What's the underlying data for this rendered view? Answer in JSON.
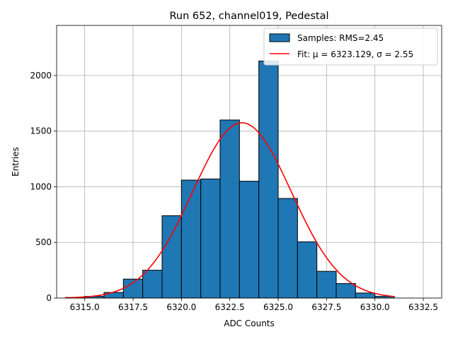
{
  "chart_data": {
    "type": "bar",
    "title": "Run 652, channel019, Pedestal",
    "xlabel": "ADC Counts",
    "ylabel": "Entries",
    "xlim": [
      6313.55,
      6333.45
    ],
    "ylim": [
      0,
      2450
    ],
    "xticks": [
      6315.0,
      6317.5,
      6320.0,
      6322.5,
      6325.0,
      6327.5,
      6330.0,
      6332.5
    ],
    "xtick_labels": [
      "6315.0",
      "6317.5",
      "6320.0",
      "6322.5",
      "6325.0",
      "6327.5",
      "6330.0",
      "6332.5"
    ],
    "yticks": [
      0,
      500,
      1000,
      1500,
      2000
    ],
    "ytick_labels": [
      "0",
      "500",
      "1000",
      "1500",
      "2000"
    ],
    "grid": true,
    "legend_position": "top-right",
    "histogram": {
      "name": "Samples: RMS=2.45",
      "color": "#1f77b4",
      "edge_color": "#000000",
      "bin_edges": [
        6314,
        6315,
        6316,
        6317,
        6318,
        6319,
        6320,
        6321,
        6322,
        6323,
        6324,
        6325,
        6326,
        6327,
        6328,
        6329,
        6330,
        6331
      ],
      "counts": [
        5,
        15,
        50,
        170,
        250,
        740,
        1060,
        1070,
        1600,
        1050,
        2130,
        895,
        505,
        240,
        130,
        45,
        15
      ]
    },
    "fit": {
      "name": "Fit: μ = 6323.129, σ = 2.55",
      "color": "#ff0000",
      "mu": 6323.129,
      "sigma": 2.55,
      "amplitude": 1575,
      "x_range": [
        6314,
        6331
      ]
    }
  }
}
